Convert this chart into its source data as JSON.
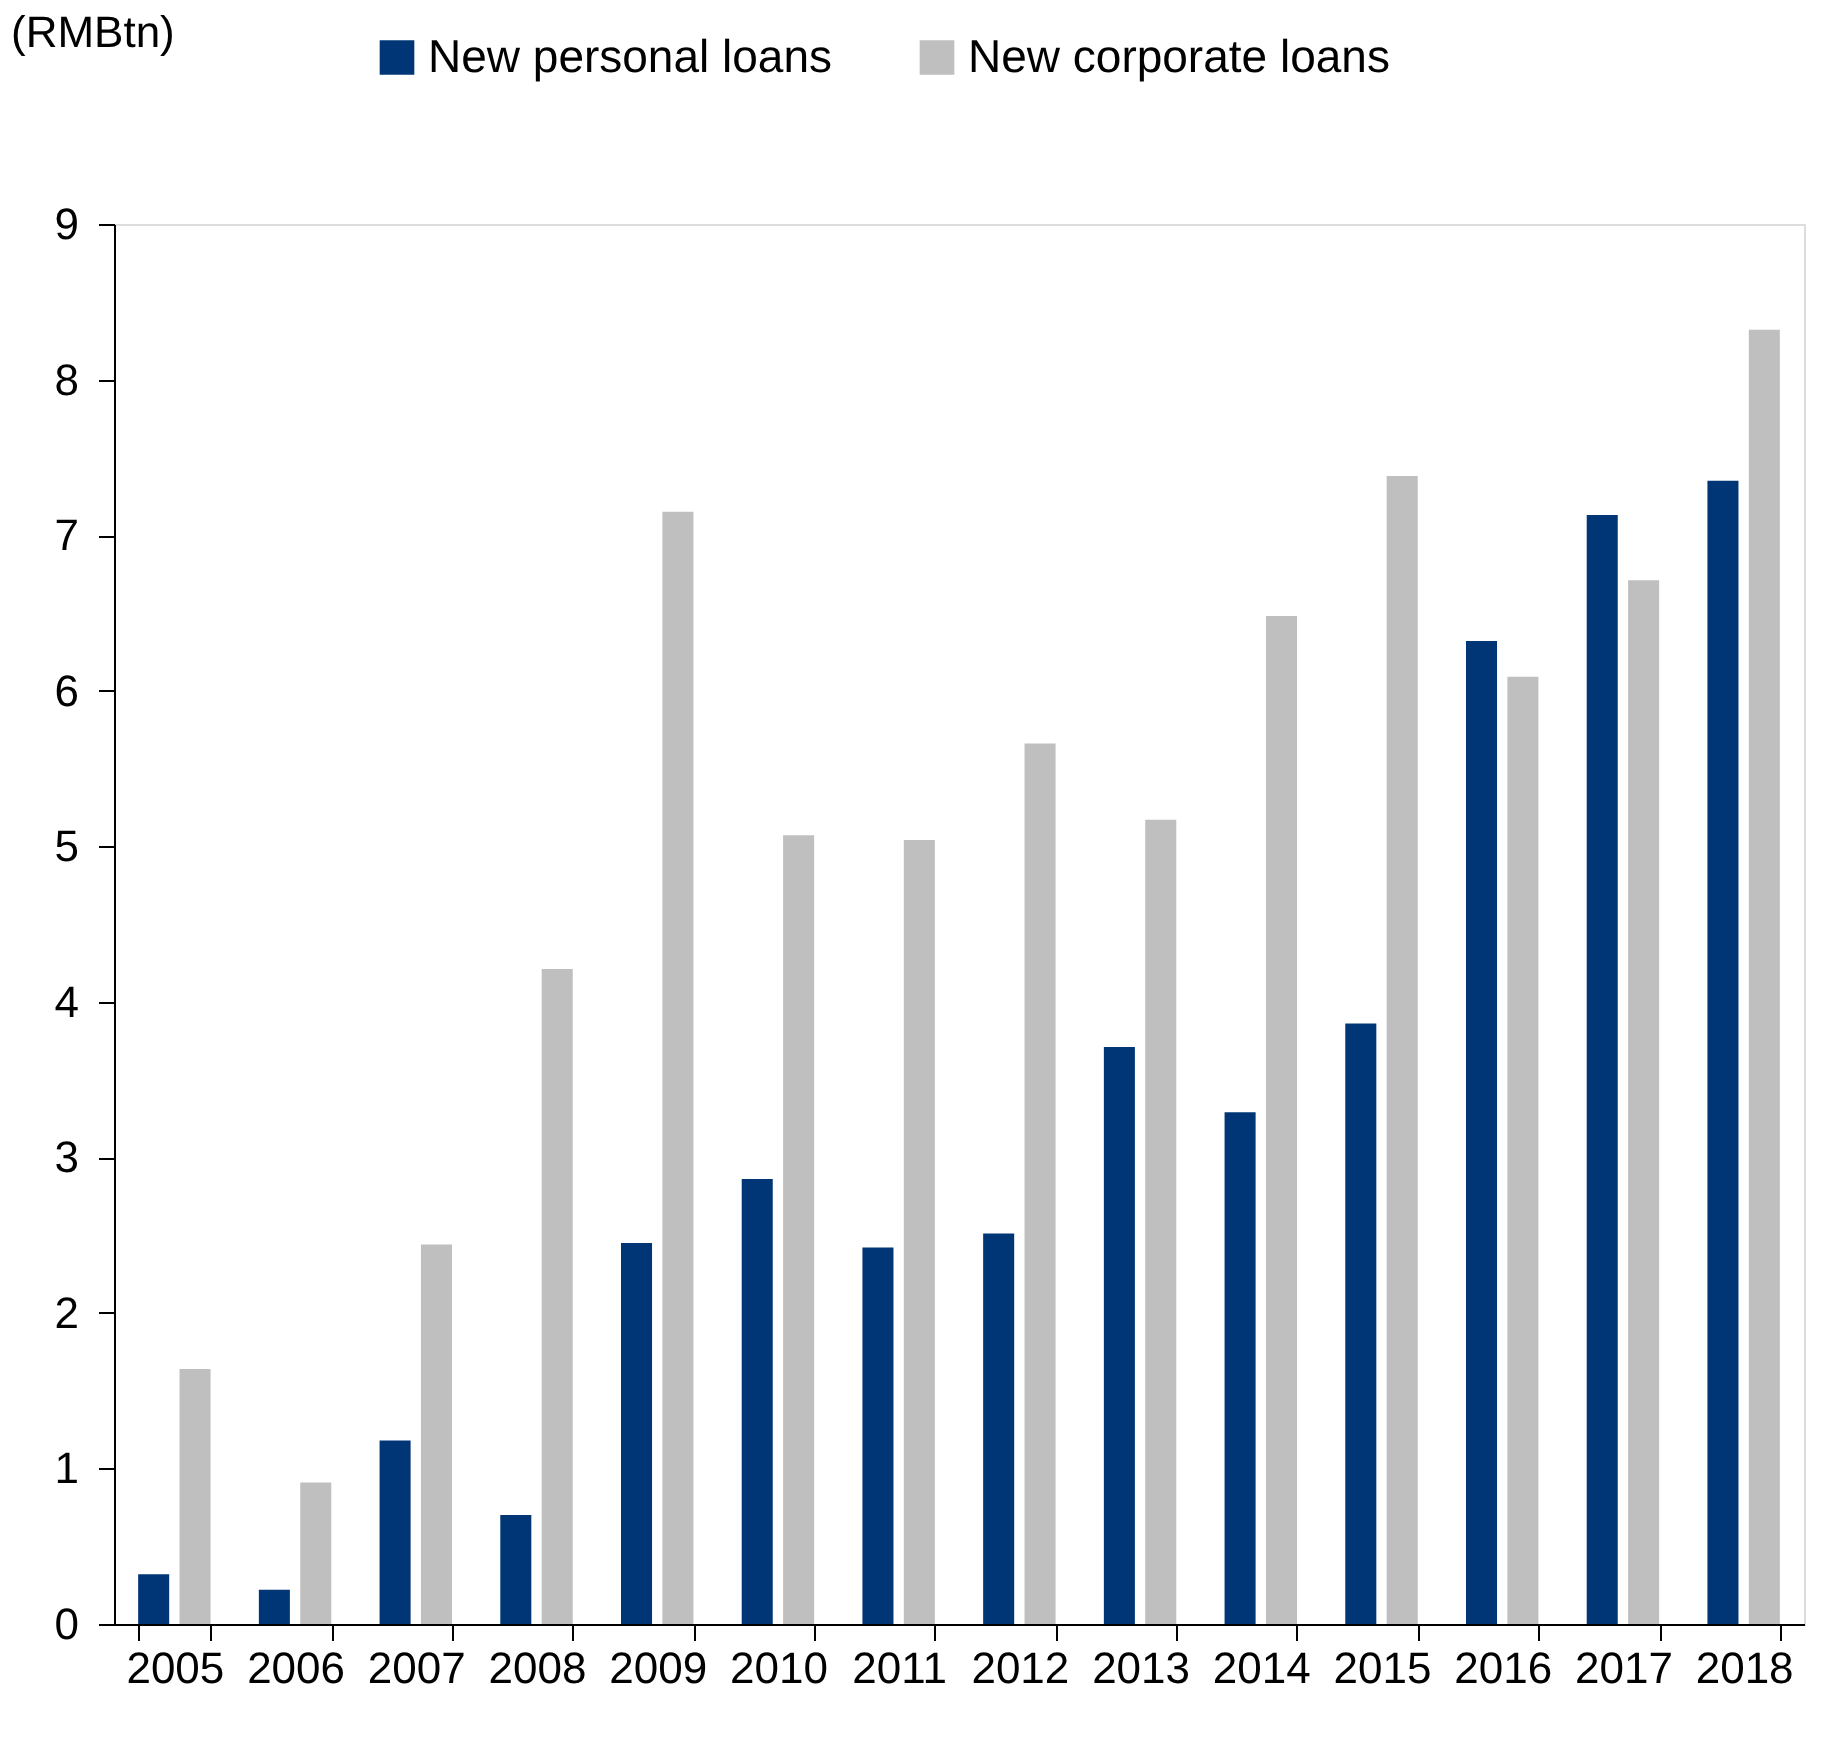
{
  "chart_data": {
    "type": "bar",
    "ylabel": "(RMBtn)",
    "categories": [
      "2005",
      "2006",
      "2007",
      "2008",
      "2009",
      "2010",
      "2011",
      "2012",
      "2013",
      "2014",
      "2015",
      "2016",
      "2017",
      "2018"
    ],
    "series": [
      {
        "name": "New personal loans",
        "color": "#003676",
        "values": [
          0.32,
          0.22,
          1.18,
          0.7,
          2.45,
          2.86,
          2.42,
          2.51,
          3.71,
          3.29,
          3.86,
          6.32,
          7.13,
          7.35
        ]
      },
      {
        "name": "New corporate loans",
        "color": "#bfbfbf",
        "values": [
          1.64,
          0.91,
          2.44,
          4.21,
          7.15,
          5.07,
          5.04,
          5.66,
          5.17,
          6.48,
          7.38,
          6.09,
          6.71,
          8.32
        ]
      }
    ],
    "ylim": [
      0,
      9
    ],
    "yticks": [
      0,
      1,
      2,
      3,
      4,
      5,
      6,
      7,
      8,
      9
    ],
    "grid": false,
    "legend": "top"
  }
}
